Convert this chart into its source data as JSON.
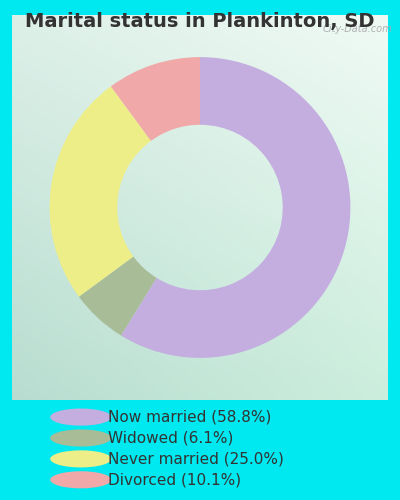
{
  "title": "Marital status in Plankinton, SD",
  "slices": [
    58.8,
    6.1,
    25.0,
    10.1
  ],
  "labels": [
    "Now married (58.8%)",
    "Widowed (6.1%)",
    "Never married (25.0%)",
    "Divorced (10.1%)"
  ],
  "colors": [
    "#c4aee0",
    "#a8bc98",
    "#eeee88",
    "#f0a8a8"
  ],
  "legend_colors": [
    "#c4aee0",
    "#a8bc98",
    "#eeee88",
    "#f0a8a8"
  ],
  "outer_bg": "#00e8f0",
  "chart_bg_tl": "#e8f5f0",
  "chart_bg_tr": "#f5faf8",
  "chart_bg_bl": "#c8e8d8",
  "chart_bg_br": "#d8eed8",
  "title_fontsize": 14,
  "legend_fontsize": 11,
  "watermark": "City-Data.com",
  "startangle": 90
}
